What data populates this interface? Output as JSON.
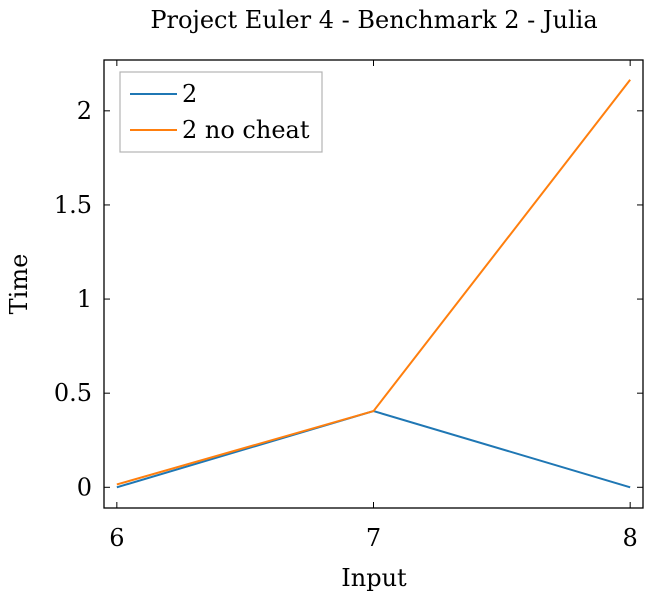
{
  "chart_data": {
    "type": "line",
    "title": "Project Euler 4 - Benchmark 2 - Julia",
    "xlabel": "Input",
    "ylabel": "Time",
    "x": [
      6,
      7,
      8
    ],
    "xlim": [
      5.95,
      8.05
    ],
    "ylim": [
      -0.11,
      2.27
    ],
    "xticks": [
      6,
      7,
      8
    ],
    "xtick_labels": [
      "6",
      "7",
      "8"
    ],
    "yticks": [
      0,
      0.5,
      1,
      1.5,
      2
    ],
    "ytick_labels": [
      "0",
      "0.5",
      "1",
      "1.5",
      "2"
    ],
    "grid": false,
    "legend_position": "top-left",
    "series": [
      {
        "name": "2",
        "color": "#1f77b4",
        "values": [
          0.0,
          0.405,
          0.0
        ]
      },
      {
        "name": "2 no cheat",
        "color": "#ff7f0e",
        "values": [
          0.015,
          0.405,
          2.165
        ]
      }
    ]
  }
}
